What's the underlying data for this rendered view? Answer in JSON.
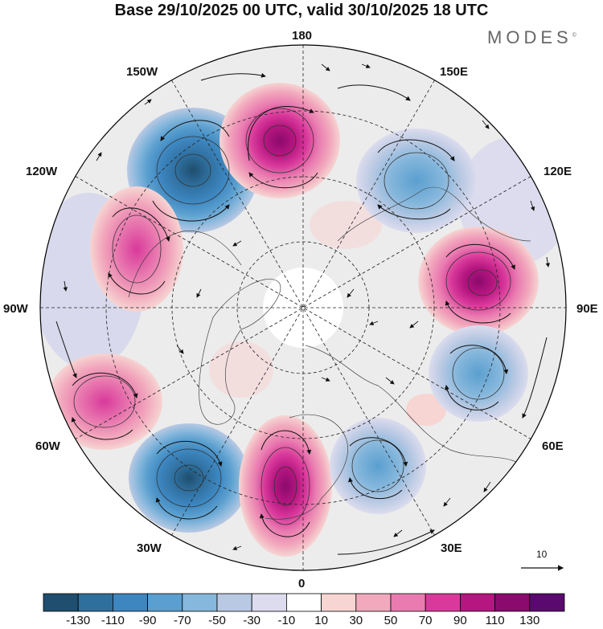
{
  "title": "Base 29/10/2025 00 UTC, valid 30/10/2025 18 UTC",
  "brand": "MODES",
  "brand_mark": "©",
  "longitude_labels": {
    "l180": "180",
    "l150e": "150E",
    "l120e": "120E",
    "l90e": "90E",
    "l60e": "60E",
    "l30e": "30E",
    "l0": "0",
    "l30w": "30W",
    "l60w": "60W",
    "l90w": "90W",
    "l120w": "120W",
    "l150w": "150W"
  },
  "reference_vector_label": "10",
  "colorbar": {
    "colors": [
      "#1f4e6e",
      "#2f6f9e",
      "#3d86c0",
      "#5a9fcf",
      "#86b7dc",
      "#b9c9e3",
      "#dcdcee",
      "#ffffff",
      "#f6d5d3",
      "#f2a9bd",
      "#e97bb0",
      "#d9399b",
      "#b5167f",
      "#8b0a6e",
      "#5a0a6e"
    ],
    "ticks": [
      "-130",
      "-110",
      "-90",
      "-70",
      "-50",
      "-30",
      "-10",
      "10",
      "30",
      "50",
      "70",
      "90",
      "110",
      "130"
    ]
  },
  "anomalies": [
    {
      "name": "negative-anomaly-150w",
      "sign": "neg",
      "peak": -120
    },
    {
      "name": "positive-anomaly-180",
      "sign": "pos",
      "peak": 110
    },
    {
      "name": "negative-anomaly-140e",
      "sign": "neg",
      "peak": -80
    },
    {
      "name": "positive-anomaly-120w",
      "sign": "pos",
      "peak": 70
    },
    {
      "name": "positive-anomaly-100e",
      "sign": "pos",
      "peak": 90
    },
    {
      "name": "negative-anomaly-70e",
      "sign": "neg",
      "peak": -60
    },
    {
      "name": "positive-anomaly-70w",
      "sign": "pos",
      "peak": 70
    },
    {
      "name": "negative-anomaly-45w",
      "sign": "neg",
      "peak": -110
    },
    {
      "name": "positive-anomaly-10w",
      "sign": "pos",
      "peak": 110
    },
    {
      "name": "negative-anomaly-40e",
      "sign": "neg",
      "peak": -40
    }
  ]
}
